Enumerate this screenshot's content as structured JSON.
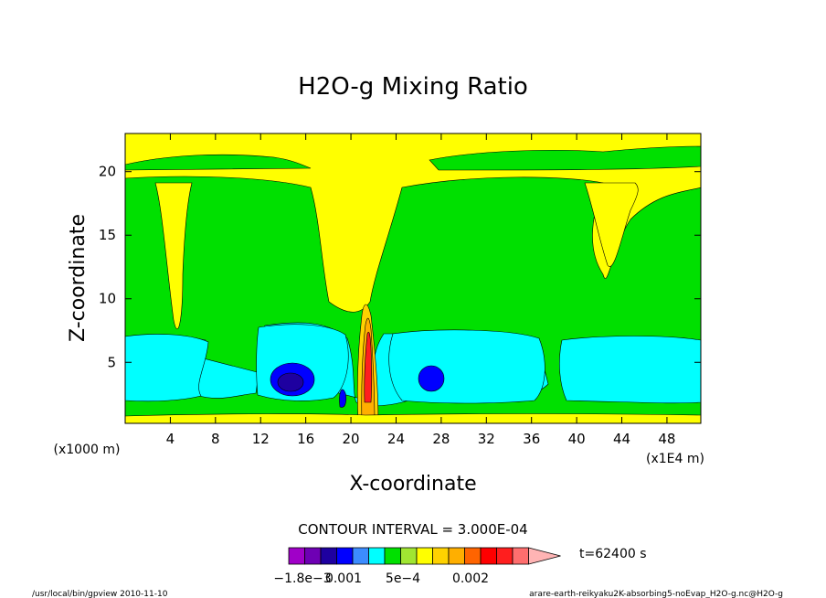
{
  "chart_data": {
    "type": "heatmap",
    "title": "H2O-g Mixing Ratio",
    "xlabel": "X-coordinate",
    "ylabel": "Z-coordinate",
    "x_unit_label": "(x1E4 m)",
    "y_unit_label": "(x1000 m)",
    "xlim": [
      0,
      51
    ],
    "ylim": [
      0.2,
      23
    ],
    "x_ticks": [
      "4",
      "8",
      "12",
      "16",
      "20",
      "24",
      "28",
      "32",
      "36",
      "40",
      "44",
      "48"
    ],
    "y_ticks": [
      "5",
      "10",
      "15",
      "20"
    ],
    "contour_interval_text": "CONTOUR INTERVAL = 3.000E-04",
    "time_text": "t=62400 s",
    "colorbar": {
      "colors": [
        "#a000c8",
        "#6e00b4",
        "#1e00a0",
        "#0000ff",
        "#3c8cff",
        "#00ffff",
        "#00e000",
        "#a0e632",
        "#ffff00",
        "#ffd200",
        "#ffaf00",
        "#ff6400",
        "#ff0000",
        "#ff1e1e",
        "#ff6e6e",
        "#ffb4b4"
      ],
      "labels": [
        "−1.8e−3",
        "0.001",
        "5e−4",
        "0.002"
      ]
    },
    "footer_left": "/usr/local/bin/gpview  2010-11-10",
    "footer_right": "arare-earth-reikyaku2K-absorbing5-noEvap_H2O-g.nc@H2O-g"
  }
}
